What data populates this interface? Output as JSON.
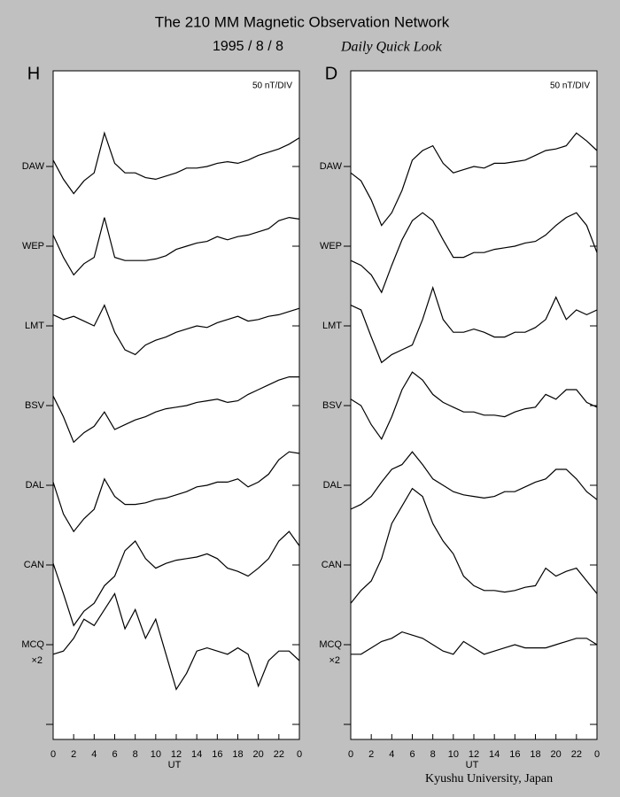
{
  "title": "The 210 MM Magnetic Observation Network",
  "date": "1995  /  8  /  8",
  "subtitle": "Daily Quick Look",
  "credit": "Kyushu University, Japan",
  "chart_data": [
    {
      "type": "line",
      "panel": "H",
      "scale_label": "50 nT/DIV",
      "xlabel": "UT",
      "color": "#000000",
      "x": [
        0,
        1,
        2,
        3,
        4,
        5,
        6,
        7,
        8,
        9,
        10,
        11,
        12,
        13,
        14,
        15,
        16,
        17,
        18,
        19,
        20,
        21,
        22,
        23,
        24
      ],
      "xlim": [
        0,
        24
      ],
      "xticks": [
        0,
        2,
        4,
        6,
        8,
        10,
        12,
        14,
        16,
        18,
        20,
        22,
        {
          "value": 24,
          "label": "0"
        }
      ],
      "series": [
        {
          "name": "DAW",
          "values": [
            4,
            -8,
            -17,
            -9,
            -4,
            21,
            2,
            -4,
            -4,
            -7,
            -8,
            -6,
            -4,
            -1,
            -1,
            0,
            2,
            3,
            2,
            4,
            7,
            9,
            11,
            14,
            18
          ]
        },
        {
          "name": "WEP",
          "values": [
            7,
            -7,
            -18,
            -11,
            -7,
            18,
            -7,
            -9,
            -9,
            -9,
            -8,
            -6,
            -2,
            0,
            2,
            3,
            6,
            4,
            6,
            7,
            9,
            11,
            16,
            18,
            17
          ]
        },
        {
          "name": "LMT",
          "values": [
            7,
            4,
            6,
            3,
            0,
            13,
            -4,
            -15,
            -18,
            -12,
            -9,
            -7,
            -4,
            -2,
            0,
            -1,
            2,
            4,
            6,
            3,
            4,
            6,
            7,
            9,
            11
          ]
        },
        {
          "name": "BSV",
          "values": [
            6,
            -7,
            -23,
            -17,
            -13,
            -4,
            -15,
            -12,
            -9,
            -7,
            -4,
            -2,
            -1,
            0,
            2,
            3,
            4,
            2,
            3,
            7,
            10,
            13,
            16,
            18,
            18
          ]
        },
        {
          "name": "DAL",
          "values": [
            2,
            -18,
            -29,
            -21,
            -15,
            4,
            -7,
            -12,
            -12,
            -11,
            -9,
            -8,
            -6,
            -4,
            -1,
            0,
            2,
            2,
            4,
            -1,
            2,
            7,
            16,
            21,
            20
          ]
        },
        {
          "name": "CAN",
          "values": [
            1,
            -18,
            -38,
            -29,
            -24,
            -13,
            -7,
            9,
            15,
            4,
            -2,
            1,
            3,
            4,
            5,
            7,
            4,
            -2,
            -4,
            -7,
            -2,
            4,
            15,
            21,
            12
          ]
        },
        {
          "name": "MCQ",
          "note": "×2",
          "multiplier": 2,
          "values": [
            -3,
            -2,
            2,
            8,
            6,
            11,
            16,
            5,
            11,
            2,
            8,
            -3,
            -14,
            -9,
            -2,
            -1,
            -2,
            -3,
            -1,
            -3,
            -13,
            -5,
            -2,
            -2,
            -5
          ]
        }
      ]
    },
    {
      "type": "line",
      "panel": "D",
      "scale_label": "50 nT/DIV",
      "xlabel": "UT",
      "color": "#000000",
      "x": [
        0,
        1,
        2,
        3,
        4,
        5,
        6,
        7,
        8,
        9,
        10,
        11,
        12,
        13,
        14,
        15,
        16,
        17,
        18,
        19,
        20,
        21,
        22,
        23,
        24
      ],
      "xlim": [
        0,
        24
      ],
      "xticks": [
        0,
        2,
        4,
        6,
        8,
        10,
        12,
        14,
        16,
        18,
        20,
        22,
        {
          "value": 24,
          "label": "0"
        }
      ],
      "series": [
        {
          "name": "DAW",
          "values": [
            -4,
            -9,
            -21,
            -37,
            -29,
            -15,
            4,
            10,
            13,
            2,
            -4,
            -2,
            0,
            -1,
            2,
            2,
            3,
            4,
            7,
            10,
            11,
            13,
            21,
            16,
            10
          ]
        },
        {
          "name": "WEP",
          "values": [
            -9,
            -12,
            -18,
            -29,
            -12,
            4,
            16,
            21,
            16,
            4,
            -7,
            -7,
            -4,
            -4,
            -2,
            -1,
            0,
            2,
            3,
            7,
            13,
            18,
            21,
            13,
            -4
          ]
        },
        {
          "name": "LMT",
          "values": [
            13,
            10,
            -7,
            -23,
            -18,
            -15,
            -12,
            4,
            24,
            4,
            -4,
            -4,
            -2,
            -4,
            -7,
            -7,
            -4,
            -4,
            -1,
            4,
            18,
            4,
            10,
            7,
            10
          ]
        },
        {
          "name": "BSV",
          "values": [
            4,
            0,
            -12,
            -21,
            -7,
            10,
            21,
            16,
            7,
            2,
            -1,
            -4,
            -4,
            -6,
            -6,
            -7,
            -4,
            -2,
            -1,
            7,
            4,
            10,
            10,
            2,
            -1
          ]
        },
        {
          "name": "DAL",
          "values": [
            -15,
            -12,
            -7,
            2,
            10,
            13,
            21,
            13,
            4,
            0,
            -4,
            -6,
            -7,
            -8,
            -7,
            -4,
            -4,
            -1,
            2,
            4,
            10,
            10,
            4,
            -4,
            -9
          ]
        },
        {
          "name": "CAN",
          "values": [
            -24,
            -16,
            -10,
            4,
            26,
            37,
            48,
            43,
            26,
            15,
            7,
            -7,
            -13,
            -16,
            -16,
            -17,
            -16,
            -14,
            -13,
            -2,
            -7,
            -4,
            -2,
            -10,
            -18
          ]
        },
        {
          "name": "MCQ",
          "note": "×2",
          "multiplier": 2,
          "values": [
            -3,
            -3,
            -1,
            1,
            2,
            4,
            3,
            2,
            0,
            -2,
            -3,
            1,
            -1,
            -3,
            -2,
            -1,
            0,
            -1,
            -1,
            -1,
            0,
            1,
            2,
            2,
            0
          ]
        }
      ]
    }
  ]
}
